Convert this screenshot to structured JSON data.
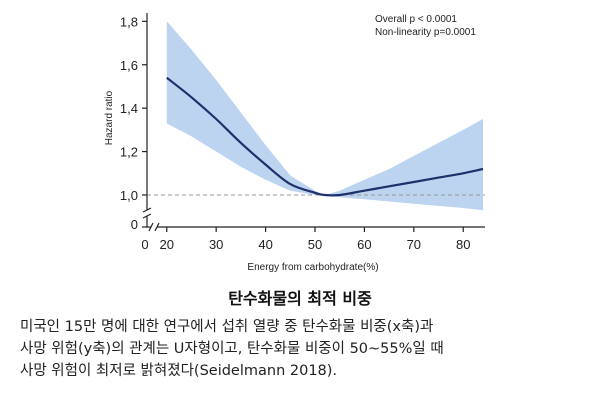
{
  "chart_data": {
    "type": "line",
    "title": "",
    "xlabel": "Energy  from  carbohydrate(%)",
    "ylabel": "Hazard  ratio",
    "xlim": [
      16,
      84
    ],
    "ylim": [
      1.0,
      1.82
    ],
    "x_ticks": [
      20,
      30,
      40,
      50,
      60,
      70,
      80
    ],
    "x_tick_labels": [
      "20",
      "30",
      "40",
      "50",
      "60",
      "70",
      "80"
    ],
    "x_origin_label": "0",
    "y_ticks": [
      1.0,
      1.2,
      1.4,
      1.6,
      1.8
    ],
    "y_tick_labels": [
      "1,0",
      "1,2",
      "1,4",
      "1,6",
      "1,8"
    ],
    "y_origin_label": "0",
    "reference_line": 1.0,
    "grid": false,
    "annotations": [
      "Overall  p < 0.0001",
      "Non-linearity  p=0.0001"
    ],
    "series": [
      {
        "x": [
          20,
          25,
          30,
          35,
          40,
          45,
          50,
          52,
          55,
          60,
          65,
          70,
          75,
          80,
          84
        ],
        "values": [
          1.54,
          1.45,
          1.35,
          1.24,
          1.14,
          1.05,
          1.01,
          1.0,
          1.0,
          1.02,
          1.04,
          1.06,
          1.08,
          1.1,
          1.12
        ],
        "lower": [
          1.33,
          1.27,
          1.2,
          1.13,
          1.07,
          1.02,
          1.0,
          1.0,
          0.99,
          0.98,
          0.97,
          0.96,
          0.95,
          0.94,
          0.93
        ],
        "upper": [
          1.8,
          1.67,
          1.53,
          1.38,
          1.23,
          1.09,
          1.02,
          1.0,
          1.02,
          1.07,
          1.12,
          1.18,
          1.24,
          1.3,
          1.35
        ],
        "color": "#1f2f6b",
        "band_color": "#bcd4f0"
      }
    ]
  },
  "caption": {
    "title": "탄수화물의 최적 비중",
    "lines": [
      "미국인 15만 명에 대한 연구에서 섭취 열량 중 탄수화물 비중(x축)과",
      "사망 위험(y축)의 관계는 U자형이고, 탄수화물 비중이 50~55%일 때",
      "사망 위험이 최저로 밝혀졌다(Seidelmann 2018)."
    ]
  }
}
